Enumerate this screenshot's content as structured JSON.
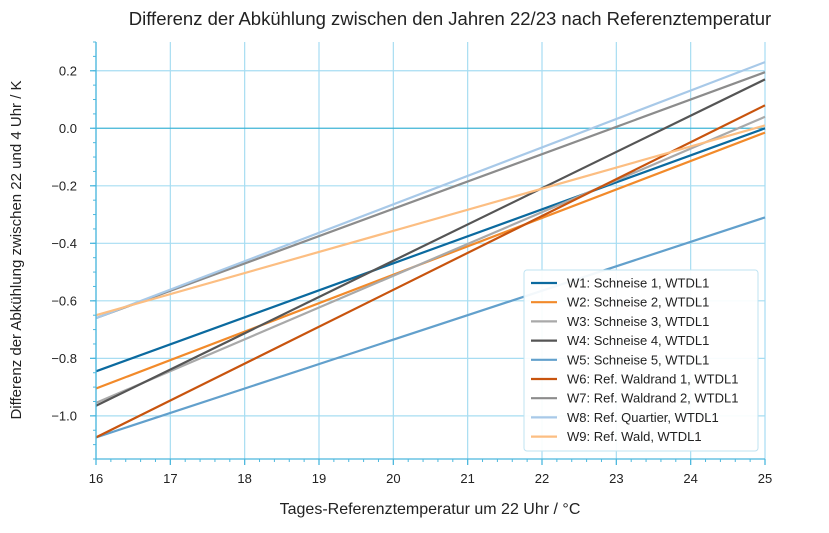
{
  "chart_data": {
    "type": "line",
    "title": "Differenz der Abkühlung zwischen den Jahren 22/23 nach Referenztemperatur",
    "xlabel": "Tages-Referenztemperatur um 22 Uhr / °C",
    "ylabel": "Differenz der Abkühlung zwischen 22 und 4 Uhr / K",
    "xlim": [
      16,
      25
    ],
    "ylim": [
      -1.15,
      0.3
    ],
    "xticks": [
      16,
      17,
      18,
      19,
      20,
      21,
      22,
      23,
      24,
      25
    ],
    "yticks": [
      -1.0,
      -0.8,
      -0.6,
      -0.4,
      -0.2,
      0.0,
      0.2
    ],
    "ytick_labels": [
      "−1.0",
      "−0.8",
      "−0.6",
      "−0.4",
      "−0.2",
      "0.0",
      "0.2"
    ],
    "grid": true,
    "legend_position": "bottom-right",
    "series": [
      {
        "name": "W1: Schneise 1, WTDL1",
        "color": "#0b6a9f",
        "x": [
          16,
          25
        ],
        "y": [
          -0.845,
          0.0
        ]
      },
      {
        "name": "W2: Schneise 2, WTDL1",
        "color": "#f28a2a",
        "x": [
          16,
          25
        ],
        "y": [
          -0.905,
          -0.015
        ]
      },
      {
        "name": "W3: Schneise 3, WTDL1",
        "color": "#a9a9a9",
        "x": [
          16,
          25
        ],
        "y": [
          -0.955,
          0.04
        ]
      },
      {
        "name": "W4: Schneise 4, WTDL1",
        "color": "#555555",
        "x": [
          16,
          25
        ],
        "y": [
          -0.965,
          0.17
        ]
      },
      {
        "name": "W5: Schneise 5, WTDL1",
        "color": "#62a0cc",
        "x": [
          16,
          25
        ],
        "y": [
          -1.075,
          -0.31
        ]
      },
      {
        "name": "W6: Ref. Waldrand 1, WTDL1",
        "color": "#c8540e",
        "x": [
          16,
          25
        ],
        "y": [
          -1.075,
          0.08
        ]
      },
      {
        "name": "W7: Ref. Waldrand 2, WTDL1",
        "color": "#8c8c8c",
        "x": [
          16,
          25
        ],
        "y": [
          -0.66,
          0.195
        ]
      },
      {
        "name": "W8: Ref. Quartier, WTDL1",
        "color": "#a8c9e8",
        "x": [
          16,
          25
        ],
        "y": [
          -0.66,
          0.23
        ]
      },
      {
        "name": "W9: Ref. Wald, WTDL1",
        "color": "#fcbe82",
        "x": [
          16,
          25
        ],
        "y": [
          -0.65,
          0.01
        ]
      }
    ]
  }
}
